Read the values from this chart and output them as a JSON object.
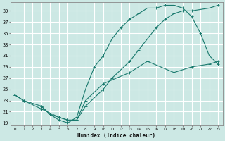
{
  "xlabel": "Humidex (Indice chaleur)",
  "bg_color": "#cce8e4",
  "grid_color": "#ffffff",
  "line_color": "#1a7a6e",
  "xlim": [
    -0.5,
    23.5
  ],
  "ylim": [
    18.5,
    40.5
  ],
  "yticks": [
    19,
    21,
    23,
    25,
    27,
    29,
    31,
    33,
    35,
    37,
    39
  ],
  "xticks": [
    0,
    1,
    2,
    3,
    4,
    5,
    6,
    7,
    8,
    9,
    10,
    11,
    12,
    13,
    14,
    15,
    16,
    17,
    18,
    19,
    20,
    21,
    22,
    23
  ],
  "curve1_x": [
    0,
    1,
    3,
    4,
    5,
    6,
    7,
    8,
    10,
    11,
    13,
    14,
    15,
    16,
    17,
    18,
    19,
    20,
    22,
    23
  ],
  "curve1_y": [
    24,
    23,
    22,
    20.5,
    20,
    19.5,
    19.5,
    22,
    25,
    27,
    30,
    32,
    34,
    36,
    37.5,
    38.5,
    39,
    39,
    39.5,
    40
  ],
  "curve2_x": [
    3,
    4,
    5,
    6,
    7,
    8,
    9,
    10,
    11,
    12,
    13,
    14,
    15,
    16,
    17,
    18,
    19,
    20,
    21,
    22,
    23
  ],
  "curve2_y": [
    22,
    20.5,
    19.5,
    19,
    20,
    25,
    29,
    31,
    34,
    36,
    37.5,
    38.5,
    39.5,
    39.5,
    40,
    40,
    39.5,
    38,
    35,
    31,
    29.5
  ],
  "curve3_x": [
    0,
    1,
    3,
    5,
    6,
    7,
    8,
    10,
    13,
    15,
    18,
    20,
    22,
    23
  ],
  "curve3_y": [
    24,
    23,
    21.5,
    20,
    19.5,
    19.5,
    23,
    26,
    28,
    30,
    28,
    29,
    29.5,
    30
  ]
}
